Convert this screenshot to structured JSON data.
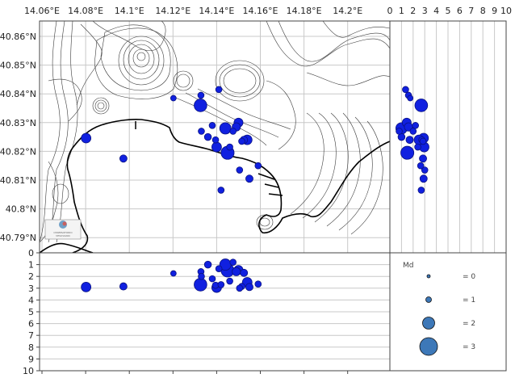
{
  "chart_data": {
    "type": "scatter",
    "title": "",
    "panels": {
      "map": {
        "xlabel": "",
        "ylabel": "",
        "x_ticks": [
          "14.06°E",
          "14.08°E",
          "14.1°E",
          "14.12°E",
          "14.14°E",
          "14.16°E",
          "14.18°E",
          "14.2°E"
        ],
        "x_values": [
          14.06,
          14.08,
          14.1,
          14.12,
          14.14,
          14.16,
          14.18,
          14.2
        ],
        "y_ticks": [
          "40.86°N",
          "40.85°N",
          "40.84°N",
          "40.83°N",
          "40.82°N",
          "40.81°N",
          "40.8°N",
          "40.79°N"
        ],
        "y_values": [
          40.86,
          40.85,
          40.84,
          40.83,
          40.82,
          40.81,
          40.8,
          40.79
        ],
        "xlim": [
          14.06,
          14.22
        ],
        "ylim": [
          40.785,
          40.865
        ],
        "grid": true
      },
      "depth_section": {
        "y_ticks": [
          "0",
          "1",
          "2",
          "3",
          "4",
          "5",
          "6",
          "7",
          "8",
          "9",
          "10"
        ],
        "ylim": [
          10,
          0
        ],
        "ylabel": "",
        "grid": true
      },
      "depth_lat_section": {
        "x_ticks": [
          "0",
          "1",
          "2",
          "3",
          "4",
          "5",
          "6",
          "7",
          "8",
          "9",
          "10"
        ],
        "xlim": [
          0,
          10
        ],
        "grid": true
      }
    },
    "legend": {
      "title": "Md",
      "entries": [
        {
          "label": "= 0",
          "size": 0
        },
        {
          "label": "= 1",
          "size": 1
        },
        {
          "label": "= 2",
          "size": 2
        },
        {
          "label": "= 3",
          "size": 3
        }
      ],
      "position": "lower right"
    },
    "events": [
      {
        "lon": 14.0802,
        "lat": 40.8246,
        "depth": 2.9,
        "md": 2.0
      },
      {
        "lon": 14.0973,
        "lat": 40.8175,
        "depth": 2.85,
        "md": 1.3
      },
      {
        "lon": 14.1202,
        "lat": 40.8385,
        "depth": 1.75,
        "md": 0.8
      },
      {
        "lon": 14.1326,
        "lat": 40.836,
        "depth": 2.7,
        "md": 2.9
      },
      {
        "lon": 14.1328,
        "lat": 40.8395,
        "depth": 1.6,
        "md": 1.0
      },
      {
        "lon": 14.141,
        "lat": 40.8415,
        "depth": 1.35,
        "md": 1.0
      },
      {
        "lon": 14.138,
        "lat": 40.829,
        "depth": 2.2,
        "md": 1.0
      },
      {
        "lon": 14.133,
        "lat": 40.827,
        "depth": 2.0,
        "md": 1.0
      },
      {
        "lon": 14.136,
        "lat": 40.825,
        "depth": 1.0,
        "md": 1.2
      },
      {
        "lon": 14.1395,
        "lat": 40.824,
        "depth": 2.75,
        "md": 1.0
      },
      {
        "lon": 14.14,
        "lat": 40.8215,
        "depth": 2.95,
        "md": 2.0
      },
      {
        "lon": 14.144,
        "lat": 40.828,
        "depth": 1.0,
        "md": 2.5
      },
      {
        "lon": 14.145,
        "lat": 40.8195,
        "depth": 1.5,
        "md": 3.0
      },
      {
        "lon": 14.1475,
        "lat": 40.827,
        "depth": 0.8,
        "md": 1.0
      },
      {
        "lon": 14.149,
        "lat": 40.8285,
        "depth": 1.6,
        "md": 1.6
      },
      {
        "lon": 14.15,
        "lat": 40.83,
        "depth": 1.45,
        "md": 1.8
      },
      {
        "lon": 14.1515,
        "lat": 40.8235,
        "depth": 2.85,
        "md": 1.0
      },
      {
        "lon": 14.1525,
        "lat": 40.824,
        "depth": 1.7,
        "md": 1.3
      },
      {
        "lon": 14.154,
        "lat": 40.824,
        "depth": 2.5,
        "md": 2.0
      },
      {
        "lon": 14.146,
        "lat": 40.8215,
        "depth": 2.4,
        "md": 1.0
      },
      {
        "lon": 14.1505,
        "lat": 40.8135,
        "depth": 3.0,
        "md": 1.0
      },
      {
        "lon": 14.155,
        "lat": 40.8105,
        "depth": 2.9,
        "md": 1.3
      },
      {
        "lon": 14.142,
        "lat": 40.8065,
        "depth": 2.7,
        "md": 1.0
      },
      {
        "lon": 14.159,
        "lat": 40.815,
        "depth": 2.65,
        "md": 1.0
      }
    ]
  },
  "colors": {
    "event_fill": "#1020e0",
    "event_edge": "#0a1280",
    "legend_fill": "#3d78b8",
    "grid": "#c8c8c8",
    "contour": "#3a3a3a"
  },
  "logo": {
    "line1": "OSSERVATORIO",
    "line2": "VESUVIANO"
  }
}
